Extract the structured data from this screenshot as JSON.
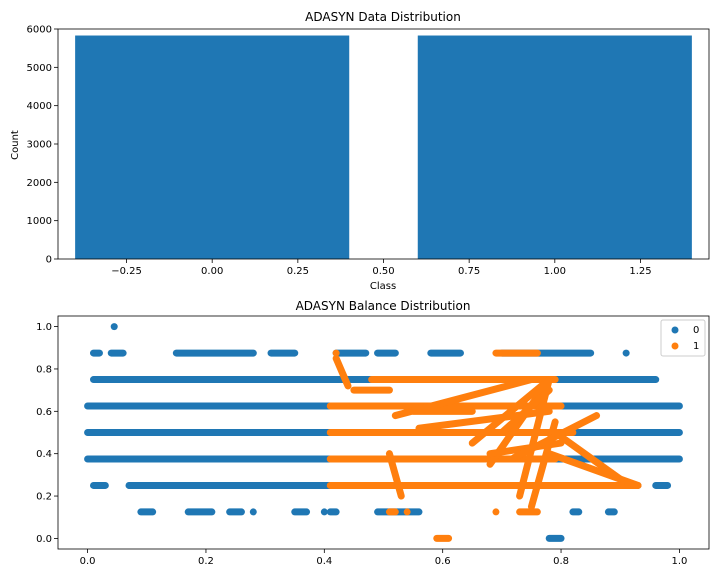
{
  "chart_data": [
    {
      "type": "bar",
      "title": "ADASYN Data Distribution",
      "xlabel": "Class",
      "ylabel": "Count",
      "categories": [
        0,
        1
      ],
      "values": [
        5830,
        5830
      ],
      "bar_color": "#1f77b4",
      "xlim": [
        -0.45,
        1.45
      ],
      "ylim": [
        0,
        6000
      ],
      "xticks": [
        -0.25,
        0.0,
        0.25,
        0.5,
        0.75,
        1.0,
        1.25
      ],
      "xtick_labels": [
        "−0.25",
        "0.00",
        "0.25",
        "0.50",
        "0.75",
        "1.00",
        "1.25"
      ],
      "yticks": [
        0,
        1000,
        2000,
        3000,
        4000,
        5000,
        6000
      ],
      "ytick_labels": [
        "0",
        "1000",
        "2000",
        "3000",
        "4000",
        "5000",
        "6000"
      ],
      "grid": false
    },
    {
      "type": "scatter",
      "title": "ADASYN Balance Distribution",
      "xlim": [
        -0.05,
        1.05
      ],
      "ylim": [
        -0.05,
        1.05
      ],
      "xticks": [
        0.0,
        0.2,
        0.4,
        0.6,
        0.8,
        1.0
      ],
      "xtick_labels": [
        "0.0",
        "0.2",
        "0.4",
        "0.6",
        "0.8",
        "1.0"
      ],
      "yticks": [
        0.0,
        0.2,
        0.4,
        0.6,
        0.8,
        1.0
      ],
      "ytick_labels": [
        "0.0",
        "0.2",
        "0.4",
        "0.6",
        "0.8",
        "1.0"
      ],
      "legend_position": "upper-right",
      "grid": false,
      "series": [
        {
          "name": "0",
          "color": "#1f77b4",
          "levels": [
            {
              "y": 0.375,
              "ranges": [
                [
                  0.0,
                  1.0
                ]
              ]
            },
            {
              "y": 0.5,
              "ranges": [
                [
                  0.0,
                  1.0
                ]
              ]
            },
            {
              "y": 0.625,
              "ranges": [
                [
                  0.0,
                  1.0
                ]
              ]
            },
            {
              "y": 0.75,
              "ranges": [
                [
                  0.01,
                  0.96
                ]
              ]
            },
            {
              "y": 0.25,
              "ranges": [
                [
                  0.01,
                  0.03
                ],
                [
                  0.07,
                  0.93
                ],
                [
                  0.96,
                  0.98
                ]
              ]
            },
            {
              "y": 0.875,
              "ranges": [
                [
                  0.01,
                  0.02
                ],
                [
                  0.04,
                  0.06
                ],
                [
                  0.15,
                  0.28
                ],
                [
                  0.31,
                  0.35
                ],
                [
                  0.42,
                  0.47
                ],
                [
                  0.49,
                  0.52
                ],
                [
                  0.58,
                  0.63
                ],
                [
                  0.7,
                  0.85
                ]
              ]
            },
            {
              "y": 0.125,
              "ranges": [
                [
                  0.09,
                  0.11
                ],
                [
                  0.17,
                  0.21
                ],
                [
                  0.24,
                  0.26
                ],
                [
                  0.35,
                  0.37
                ],
                [
                  0.41,
                  0.42
                ],
                [
                  0.49,
                  0.56
                ],
                [
                  0.82,
                  0.83
                ],
                [
                  0.88,
                  0.89
                ]
              ]
            },
            {
              "y": 0.0,
              "ranges": [
                [
                  0.78,
                  0.8
                ]
              ]
            }
          ],
          "points": [
            [
              0.045,
              1.0
            ],
            [
              0.91,
              0.875
            ],
            [
              0.28,
              0.125
            ],
            [
              0.4,
              0.125
            ]
          ]
        },
        {
          "name": "1",
          "color": "#ff7f0e",
          "levels": [
            {
              "y": 0.375,
              "ranges": [
                [
                  0.41,
                  0.79
                ]
              ]
            },
            {
              "y": 0.5,
              "ranges": [
                [
                  0.41,
                  0.82
                ]
              ]
            },
            {
              "y": 0.625,
              "ranges": [
                [
                  0.41,
                  0.8
                ]
              ]
            },
            {
              "y": 0.25,
              "ranges": [
                [
                  0.41,
                  0.93
                ]
              ]
            },
            {
              "y": 0.75,
              "ranges": [
                [
                  0.48,
                  0.79
                ]
              ]
            },
            {
              "y": 0.875,
              "ranges": [
                [
                  0.69,
                  0.76
                ]
              ]
            },
            {
              "y": 0.125,
              "ranges": [
                [
                  0.51,
                  0.52
                ],
                [
                  0.73,
                  0.76
                ]
              ]
            },
            {
              "y": 0.0,
              "ranges": [
                [
                  0.59,
                  0.61
                ]
              ]
            }
          ],
          "points": [
            [
              0.42,
              0.875
            ],
            [
              0.54,
              0.125
            ],
            [
              0.69,
              0.125
            ]
          ],
          "segments": [
            [
              [
                0.52,
                0.58
              ],
              [
                0.75,
                0.75
              ]
            ],
            [
              [
                0.65,
                0.45
              ],
              [
                0.78,
                0.75
              ]
            ],
            [
              [
                0.68,
                0.35
              ],
              [
                0.78,
                0.75
              ]
            ],
            [
              [
                0.68,
                0.4
              ],
              [
                0.8,
                0.45
              ]
            ],
            [
              [
                0.7,
                0.5
              ],
              [
                0.78,
                0.7
              ]
            ],
            [
              [
                0.73,
                0.2
              ],
              [
                0.78,
                0.75
              ]
            ],
            [
              [
                0.75,
                0.15
              ],
              [
                0.79,
                0.55
              ]
            ],
            [
              [
                0.72,
                0.38
              ],
              [
                0.86,
                0.58
              ]
            ],
            [
              [
                0.78,
                0.4
              ],
              [
                0.93,
                0.25
              ]
            ],
            [
              [
                0.79,
                0.5
              ],
              [
                0.9,
                0.28
              ]
            ],
            [
              [
                0.51,
                0.4
              ],
              [
                0.53,
                0.2
              ]
            ],
            [
              [
                0.42,
                0.85
              ],
              [
                0.44,
                0.72
              ]
            ],
            [
              [
                0.45,
                0.7
              ],
              [
                0.51,
                0.7
              ]
            ],
            [
              [
                0.55,
                0.6
              ],
              [
                0.65,
                0.6
              ]
            ],
            [
              [
                0.56,
                0.52
              ],
              [
                0.78,
                0.6
              ]
            ]
          ]
        }
      ]
    }
  ]
}
